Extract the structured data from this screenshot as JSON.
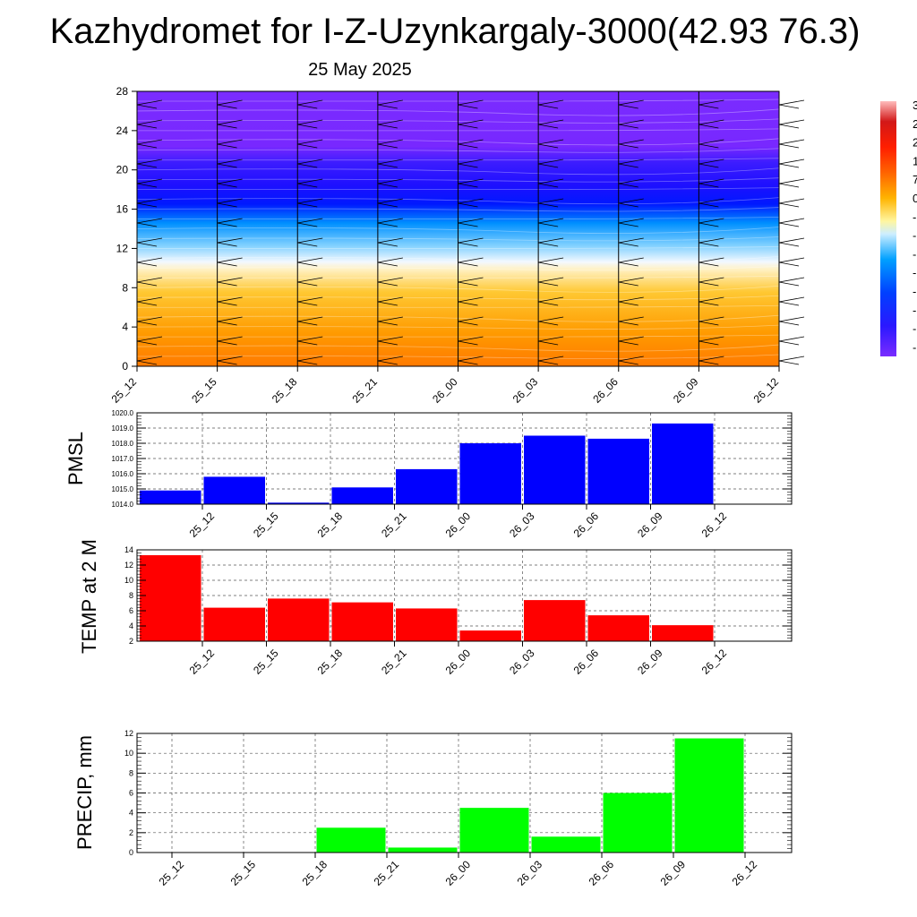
{
  "title": "Kazhydromet for I-Z-Uzynkargaly-3000(42.93 76.3)",
  "subtitle": "25 May 2025",
  "chart_data": [
    {
      "type": "heatmap",
      "x_ticks": [
        "25_12",
        "25_15",
        "25_18",
        "25_21",
        "26_00",
        "26_03",
        "26_06",
        "26_09",
        "26_12"
      ],
      "y_ticks": [
        "0",
        "4",
        "8",
        "12",
        "16",
        "20",
        "24",
        "28"
      ],
      "ylim": [
        0,
        28
      ],
      "colorbar_labels": [
        "3",
        "2",
        "2",
        "1",
        "7",
        "0",
        "-",
        "-",
        "-",
        "-",
        "-",
        "-",
        "-",
        "-"
      ],
      "colors": [
        "#ff7f00",
        "#ffa500",
        "#ffe15a",
        "#fffbe6",
        "#87cefa",
        "#0050ff",
        "#3c28ff",
        "#7a2cff"
      ],
      "wind_barbs": true
    },
    {
      "type": "line",
      "ylabel": "PMSL",
      "categories": [
        "25_12",
        "25_15",
        "25_18",
        "25_21",
        "26_00",
        "26_03",
        "26_06",
        "26_09",
        "26_12"
      ],
      "values": [
        1014.9,
        1015.8,
        1014.1,
        1015.1,
        1016.3,
        1018.0,
        1018.5,
        1018.3,
        1019.3
      ],
      "ylim": [
        1014.0,
        1020.0
      ],
      "y_ticks": [
        "1014.0",
        "1015.0",
        "1016.0",
        "1017.0",
        "1018.0",
        "1019.0",
        "1020.0"
      ],
      "color": "#0000ff",
      "grid": true
    },
    {
      "type": "line",
      "ylabel": "TEMP at 2 M",
      "categories": [
        "25_12",
        "25_15",
        "25_18",
        "25_21",
        "26_00",
        "26_03",
        "26_06",
        "26_09",
        "26_12"
      ],
      "values": [
        13.3,
        6.4,
        7.6,
        7.1,
        6.3,
        3.4,
        7.4,
        5.4,
        4.1
      ],
      "ylim": [
        2,
        14
      ],
      "y_ticks": [
        "2",
        "4",
        "6",
        "8",
        "10",
        "12",
        "14"
      ],
      "color": "#ff0000",
      "grid": true
    },
    {
      "type": "bar",
      "ylabel": "PRECIP, mm",
      "categories": [
        "25_12",
        "25_15",
        "25_18",
        "25_21",
        "26_00",
        "26_03",
        "26_06",
        "26_09",
        "26_12"
      ],
      "values": [
        0,
        0,
        0,
        2.5,
        0.5,
        4.5,
        1.6,
        6.0,
        11.5
      ],
      "ylim": [
        0,
        12
      ],
      "y_ticks": [
        "0",
        "2",
        "4",
        "6",
        "8",
        "10",
        "12"
      ],
      "color": "#00ff00",
      "grid": true
    }
  ]
}
